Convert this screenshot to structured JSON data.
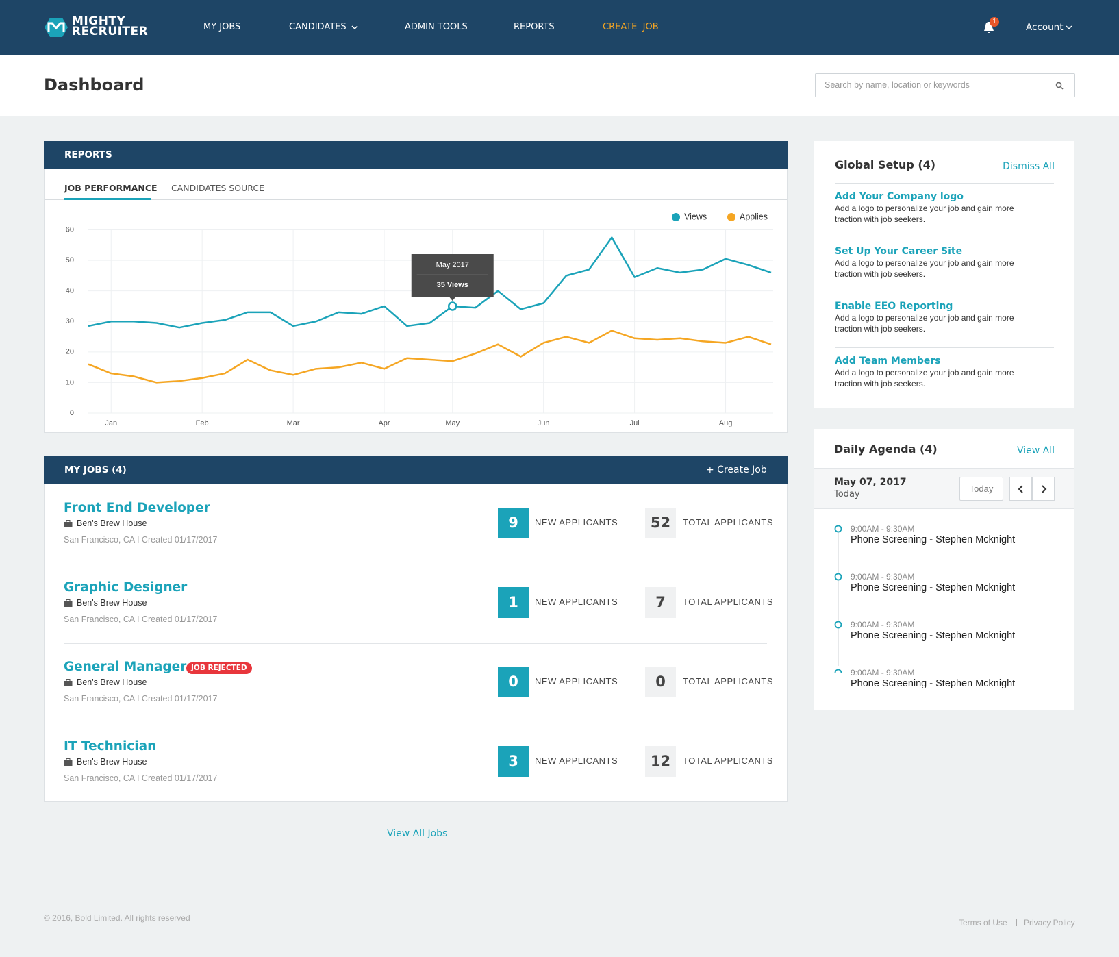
{
  "nav": {
    "brand": [
      "MIGHTY",
      "RECRUITER"
    ],
    "items": [
      "MY JOBS",
      "CANDIDATES",
      "ADMIN TOOLS",
      "REPORTS",
      "CREATE  JOB"
    ],
    "notifications": "1",
    "account": "Account"
  },
  "header": {
    "title": "Dashboard",
    "search_placeholder": "Search by name, location or keywords"
  },
  "reports": {
    "title": "REPORTS",
    "tabs": [
      "JOB PERFORMANCE",
      "CANDIDATES SOURCE"
    ]
  },
  "chart_data": {
    "type": "line",
    "categories": [
      null,
      "Jan",
      null,
      null,
      null,
      "Feb",
      null,
      null,
      null,
      "Mar",
      null,
      null,
      null,
      "Apr",
      null,
      null,
      "May",
      null,
      null,
      null,
      "Jun",
      null,
      null,
      null,
      "Jul",
      null,
      null,
      null,
      "Aug",
      null,
      null
    ],
    "series": [
      {
        "name": "Views",
        "color": "#1ba3b9",
        "values": [
          28.5,
          30,
          30,
          29.5,
          28,
          29.5,
          30.5,
          33,
          33,
          28.5,
          30,
          33,
          32.5,
          35,
          28.5,
          29.5,
          35,
          34.5,
          40,
          34,
          36,
          45,
          47,
          57.5,
          44.5,
          47.5,
          46,
          47,
          50.5,
          48.5,
          46
        ]
      },
      {
        "name": "Applies",
        "color": "#f5a623",
        "values": [
          16,
          13,
          12,
          10,
          10.5,
          11.5,
          13,
          17.5,
          14,
          12.5,
          14.5,
          15,
          16.5,
          14.5,
          18,
          17.5,
          17,
          19.5,
          22.5,
          18.5,
          23,
          25,
          23,
          27,
          24.5,
          24,
          24.5,
          23.5,
          23,
          25,
          22.5
        ]
      }
    ],
    "ylim": [
      0,
      60
    ],
    "yticks": [
      0,
      10,
      20,
      30,
      40,
      50,
      60
    ],
    "grid": true,
    "legend": "top-right",
    "tooltip": {
      "title": "May 2017",
      "label": "35 Views"
    }
  },
  "jobs": {
    "title": "MY JOBS (4)",
    "create": "+ Create Job",
    "new_label": "NEW APPLICANTS",
    "total_label": "TOTAL APPLICANTS",
    "view_all": "View All Jobs",
    "items": [
      {
        "title": "Front End Developer",
        "company": "Ben's Brew House",
        "meta": "San Francisco, CA I Created 01/17/2017",
        "new": "9",
        "total": "52"
      },
      {
        "title": "Graphic Designer",
        "company": "Ben's Brew House",
        "meta": "San Francisco, CA I Created 01/17/2017",
        "new": "1",
        "total": "7"
      },
      {
        "title": "General Manager",
        "badge": "JOB REJECTED",
        "company": "Ben's Brew House",
        "meta": "San Francisco, CA I Created 01/17/2017",
        "new": "0",
        "total": "0"
      },
      {
        "title": "IT Technician",
        "company": "Ben's Brew House",
        "meta": "San Francisco, CA I Created 01/17/2017",
        "new": "3",
        "total": "12"
      }
    ]
  },
  "setup": {
    "title": "Global Setup (4)",
    "dismiss": "Dismiss All",
    "items": [
      {
        "title": "Add Your Company logo",
        "desc": [
          "Add a logo to personalize your job and gain more",
          "traction with job seekers."
        ]
      },
      {
        "title": "Set Up Your Career Site",
        "desc": [
          "Add a logo to personalize your job and gain more",
          "traction with job seekers."
        ]
      },
      {
        "title": "Enable EEO Reporting",
        "desc": [
          "Add a logo to personalize your job and gain more",
          "traction with job seekers."
        ]
      },
      {
        "title": "Add Team Members",
        "desc": [
          "Add a logo to personalize your job and gain more",
          "traction with job seekers."
        ]
      }
    ]
  },
  "agenda": {
    "title": "Daily Agenda (4)",
    "view_all": "View All",
    "date": "May 07, 2017",
    "day": "Today",
    "today_button": "Today",
    "items": [
      {
        "time": "9:00AM - 9:30AM",
        "title": "Phone Screening - Stephen Mcknight"
      },
      {
        "time": "9:00AM - 9:30AM",
        "title": "Phone Screening - Stephen Mcknight"
      },
      {
        "time": "9:00AM - 9:30AM",
        "title": "Phone Screening - Stephen Mcknight"
      },
      {
        "time": "9:00AM - 9:30AM",
        "title": "Phone Screening - Stephen Mcknight"
      }
    ]
  },
  "footer": {
    "copyright": "© 2016, Bold Limited. All rights reserved",
    "links": [
      "Terms of Use",
      "Privacy Policy"
    ]
  }
}
